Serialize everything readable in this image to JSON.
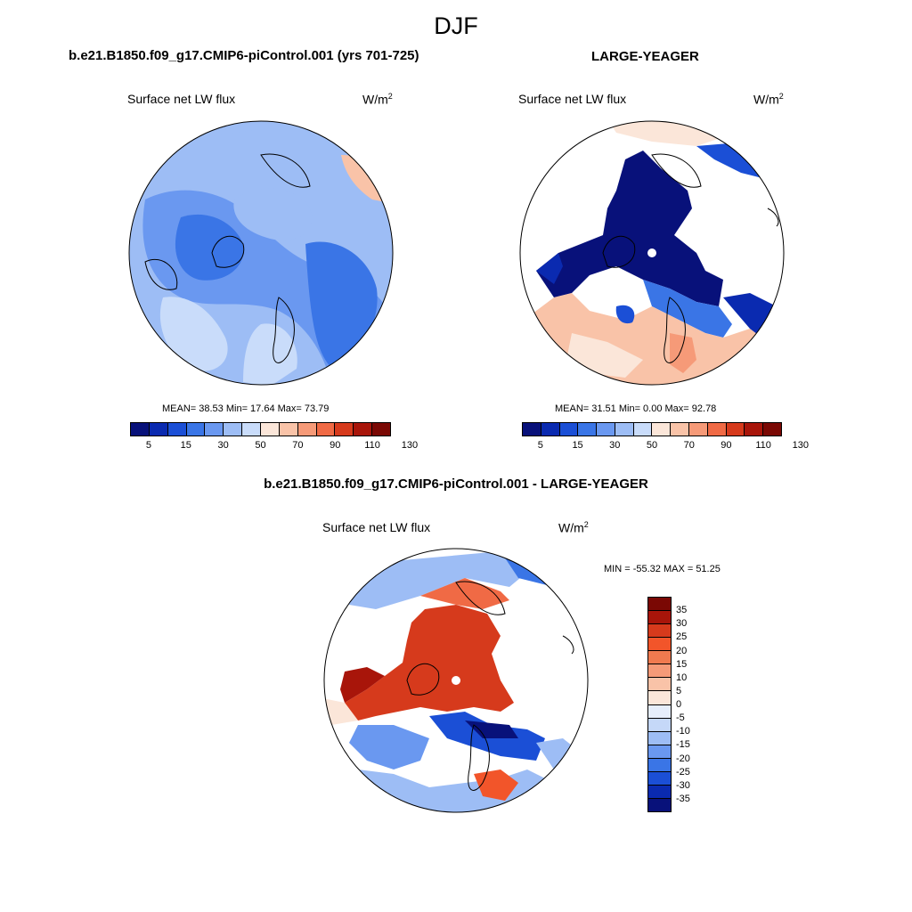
{
  "figure_title": "DJF",
  "panels": [
    {
      "case": "b.e21.B1850.f09_g17.CMIP6-piControl.001 (yrs 701-725)",
      "variable": "Surface net LW flux",
      "units": "W/m",
      "units_exp": "2",
      "stats": "MEAN=  38.53  Min=  17.64  Max=  73.79"
    },
    {
      "case": "LARGE-YEAGER",
      "variable": "Surface net LW flux",
      "units": "W/m",
      "units_exp": "2",
      "stats": "MEAN=  31.51  Min=   0.00  Max=  92.78"
    },
    {
      "case": "b.e21.B1850.f09_g17.CMIP6-piControl.001 - LARGE-YEAGER",
      "variable": "Surface net LW flux",
      "units": "W/m",
      "units_exp": "2",
      "stats": "MIN = -55.32 MAX =  51.25"
    }
  ],
  "abs_colorbar": {
    "colors": [
      "#08117a",
      "#0a2ab0",
      "#1b4fd6",
      "#3a75e6",
      "#6a98f0",
      "#9dbdf5",
      "#c9dcfa",
      "#fbe6d9",
      "#f9c3a8",
      "#f69a78",
      "#f06a45",
      "#d63a1c",
      "#a8150a",
      "#7a0804"
    ],
    "tick_labels": [
      "5",
      "15",
      "30",
      "50",
      "70",
      "90",
      "110",
      "130"
    ]
  },
  "diff_colorbar": {
    "colors": [
      "#7a0804",
      "#a8150a",
      "#d63a1c",
      "#f2552a",
      "#f07a4f",
      "#f59a78",
      "#f9c3a8",
      "#fbe6d9",
      "#e6eefb",
      "#c5d8f8",
      "#9dbdf5",
      "#6a98f0",
      "#3a75e6",
      "#1b4fd6",
      "#0a2ab0",
      "#08117a"
    ],
    "tick_labels": [
      "35",
      "30",
      "25",
      "20",
      "15",
      "10",
      "5",
      "0",
      "-5",
      "-10",
      "-15",
      "-20",
      "-25",
      "-30",
      "-35"
    ]
  }
}
